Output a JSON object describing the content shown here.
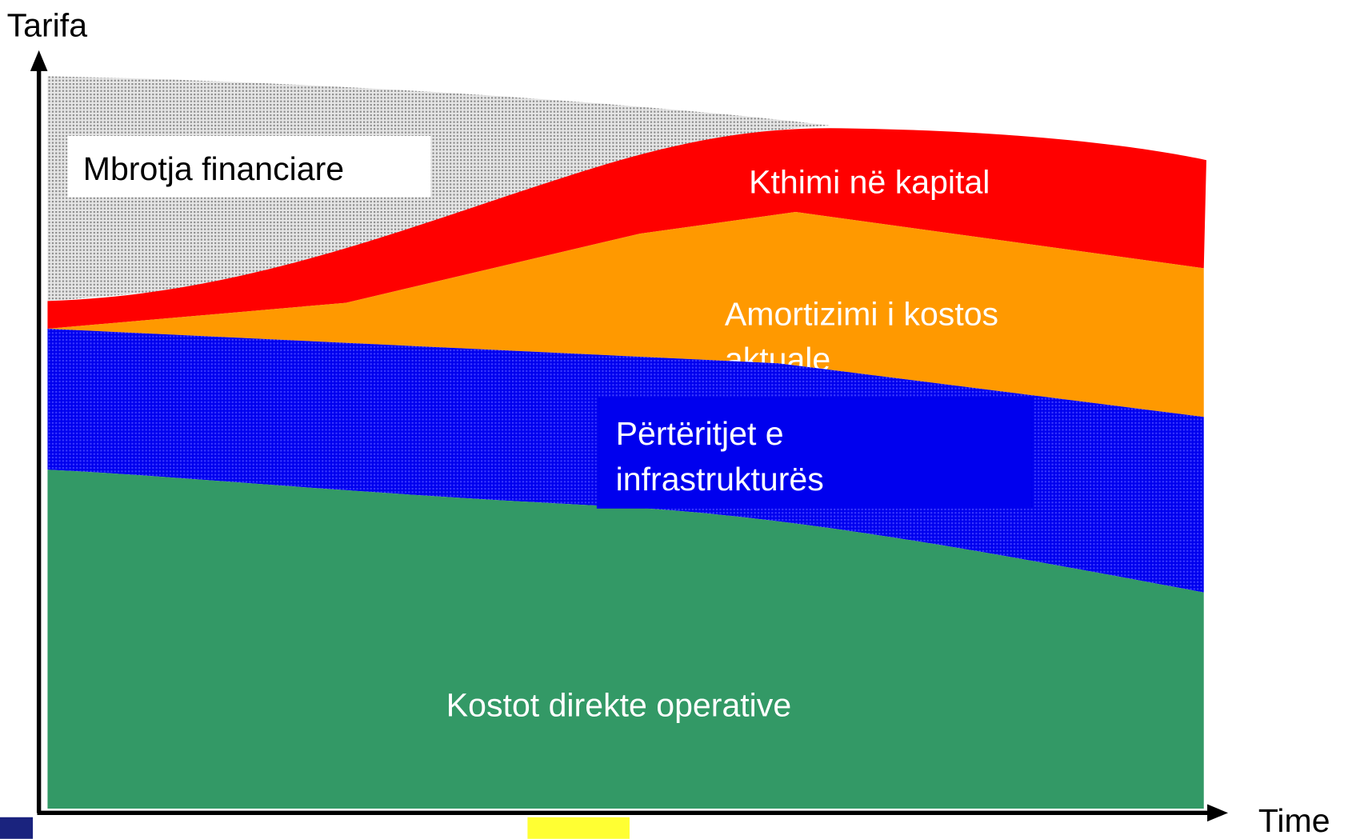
{
  "axes": {
    "y_label": "Tarifa",
    "x_label": "Time"
  },
  "layers": [
    {
      "label": [
        "Mbrotja financiare"
      ]
    },
    {
      "label": [
        "Kthimi në kapital"
      ]
    },
    {
      "label": [
        "Amortizimi i kostos",
        "aktuale"
      ]
    },
    {
      "label": [
        "Përtëritjet e",
        "infrastrukturës"
      ]
    },
    {
      "label": [
        "Kostot direkte operative"
      ]
    }
  ]
}
